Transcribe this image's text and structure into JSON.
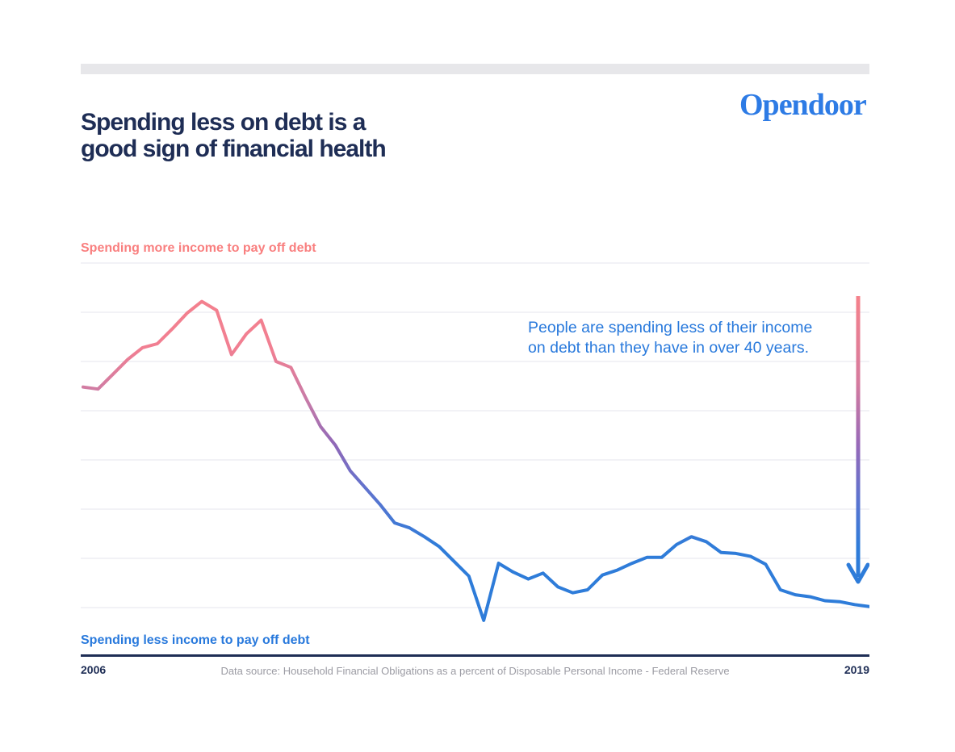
{
  "page": {
    "title": "Spending less on debt is a\ngood sign of financial health",
    "logo": "Opendoor"
  },
  "chart": {
    "top_label": "Spending more income to pay off debt",
    "bottom_label": "Spending less income to pay off debt",
    "annotation": "People are spending less of their income\non debt than they have in over 40 years.",
    "x_start_label": "2006",
    "x_end_label": "2019",
    "source": "Data source: Household Financial Obligations as a percent of Disposable Personal Income - Federal Reserve"
  },
  "colors": {
    "navy": "#1E2D55",
    "logo_blue": "#2D7BE5",
    "blue": "#2879DC",
    "coral_text": "#F97F7F",
    "coral_line": "#F5818B",
    "purple_mid": "#8E68B8",
    "blue_line": "#2E7CD9",
    "gridline": "#EDEDF4",
    "bar": "#E7E7EA",
    "gray_text": "#9B9BA3"
  },
  "chart_data": {
    "type": "line",
    "title": "Spending less on debt is a good sign of financial health",
    "series_name": "Household Financial Obligations as a percent of Disposable Personal Income",
    "x": [
      "2006 Q1",
      "2006 Q2",
      "2006 Q3",
      "2006 Q4",
      "2007 Q1",
      "2007 Q2",
      "2007 Q3",
      "2007 Q4",
      "2008 Q1",
      "2008 Q2",
      "2008 Q3",
      "2008 Q4",
      "2009 Q1",
      "2009 Q2",
      "2009 Q3",
      "2009 Q4",
      "2010 Q1",
      "2010 Q2",
      "2010 Q3",
      "2010 Q4",
      "2011 Q1",
      "2011 Q2",
      "2011 Q3",
      "2011 Q4",
      "2012 Q1",
      "2012 Q2",
      "2012 Q3",
      "2012 Q4",
      "2013 Q1",
      "2013 Q2",
      "2013 Q3",
      "2013 Q4",
      "2014 Q1",
      "2014 Q2",
      "2014 Q3",
      "2014 Q4",
      "2015 Q1",
      "2015 Q2",
      "2015 Q3",
      "2015 Q4",
      "2016 Q1",
      "2016 Q2",
      "2016 Q3",
      "2016 Q4",
      "2017 Q1",
      "2017 Q2",
      "2017 Q3",
      "2017 Q4",
      "2018 Q1",
      "2018 Q2",
      "2018 Q3",
      "2018 Q4",
      "2019 Q1",
      "2019 Q2"
    ],
    "values": [
      17.24,
      17.22,
      17.37,
      17.52,
      17.64,
      17.68,
      17.83,
      17.99,
      18.11,
      18.02,
      17.57,
      17.78,
      17.92,
      17.5,
      17.44,
      17.13,
      16.84,
      16.65,
      16.39,
      16.22,
      16.05,
      15.86,
      15.81,
      15.72,
      15.62,
      15.47,
      15.32,
      14.87,
      15.45,
      15.36,
      15.29,
      15.35,
      15.21,
      15.15,
      15.18,
      15.33,
      15.38,
      15.45,
      15.51,
      15.51,
      15.64,
      15.72,
      15.67,
      15.56,
      15.55,
      15.52,
      15.44,
      15.18,
      15.13,
      15.11,
      15.07,
      15.06,
      15.03,
      15.01
    ],
    "unit": "percent of disposable personal income",
    "xlabel": "",
    "ylabel": "",
    "x_range": [
      "2006",
      "2019"
    ],
    "ylim": [
      15.0,
      18.5
    ],
    "gridlines": [
      15.0,
      15.5,
      16.0,
      16.5,
      17.0,
      17.5,
      18.0,
      18.5
    ],
    "grid": true,
    "legend_position": "none",
    "y_tick_labels_shown": false
  }
}
